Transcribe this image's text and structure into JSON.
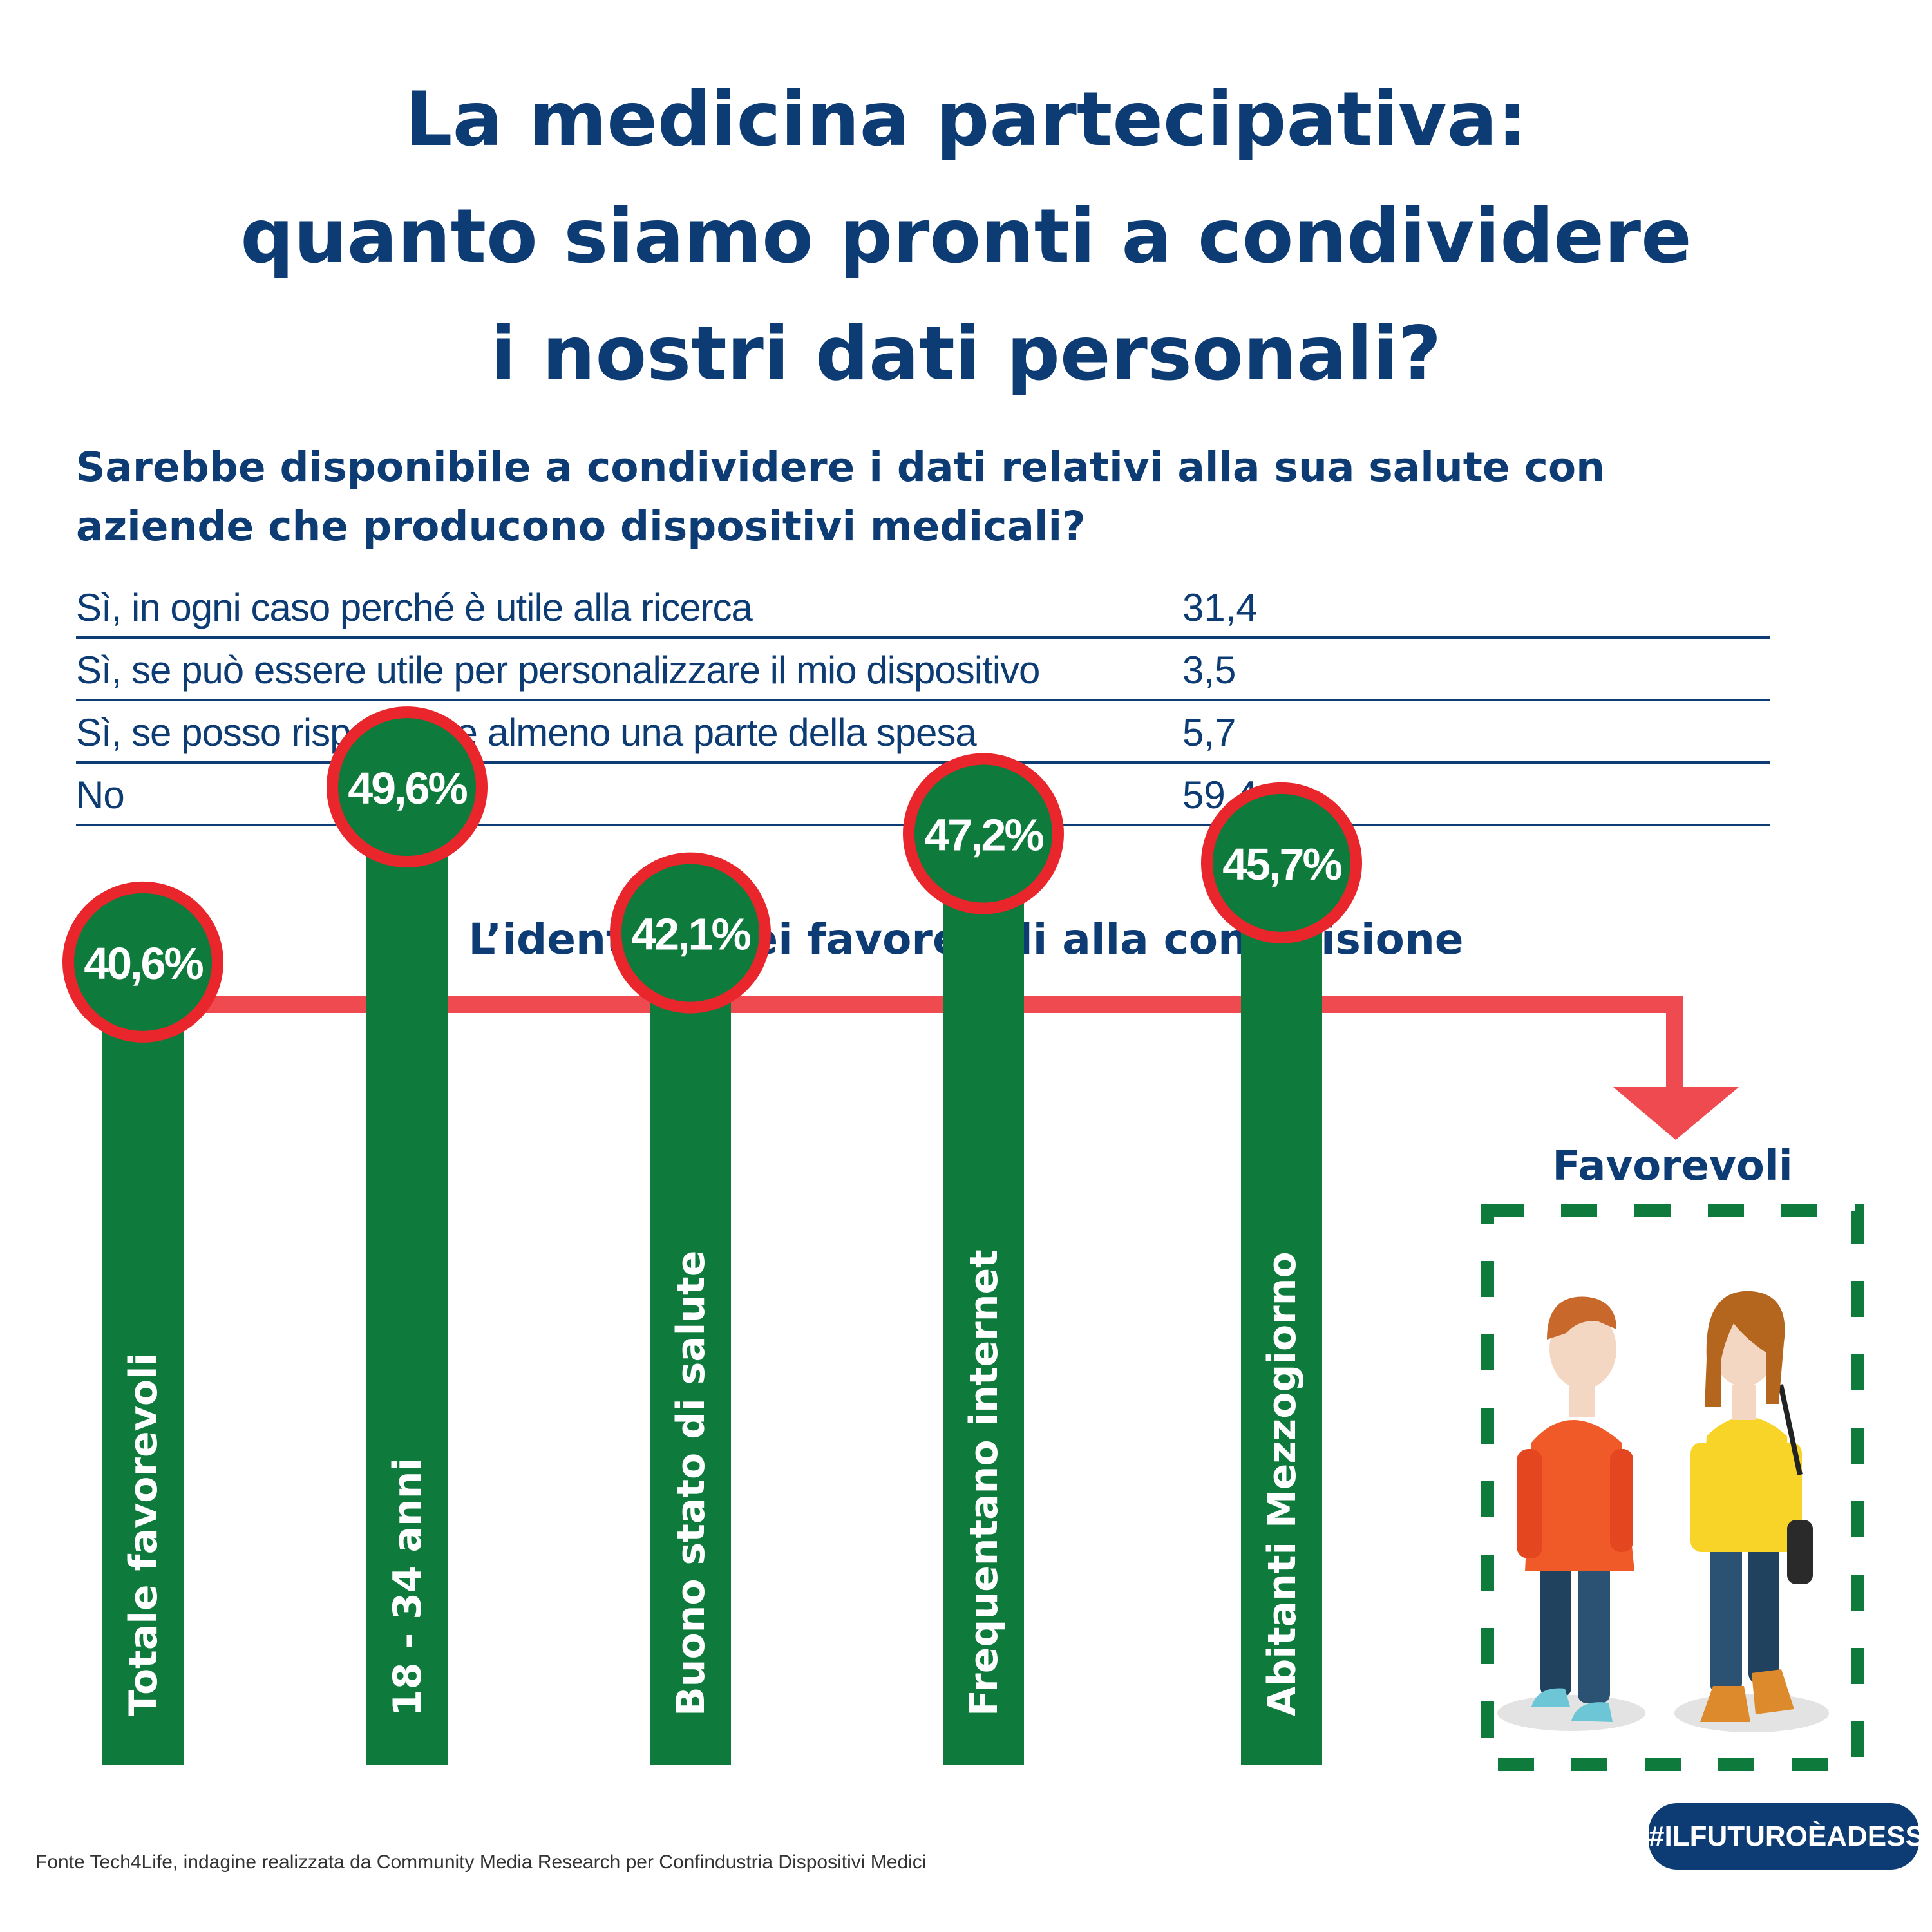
{
  "title_lines": [
    "La medicina partecipativa:",
    "quanto siamo pronti a condividere",
    "i nostri dati personali?"
  ],
  "question": "Sarebbe disponibile a condividere i dati relativi alla sua salute con aziende che producono dispositivi medicali?",
  "table_rows": [
    {
      "label": "Sì, in ogni caso perché è utile alla ricerca",
      "value": "31,4"
    },
    {
      "label": "Sì, se può essere utile per personalizzare il mio dispositivo",
      "value": "3,5"
    },
    {
      "label": "Sì, se posso risparmiare almeno una parte della spesa",
      "value": "5,7"
    },
    {
      "label": "No",
      "value": "59,4"
    }
  ],
  "subtitle": "L’identikit dei favorevoli alla condivisione",
  "favorevoli_label": "Favorevoli",
  "footer": "Fonte Tech4Life, indagine realizzata da Community Media Research per Confindustria Dispositivi Medici",
  "badge": "#ILFUTUROÈADESSO",
  "colors": {
    "navy": "#0d3b73",
    "green": "#0e7a3c",
    "red": "#e8262b",
    "connector": "#ef4a4f"
  },
  "chart_data": {
    "type": "bar",
    "title": "L’identikit dei favorevoli alla condivisione",
    "categories": [
      "Totale favorevoli",
      "18 - 34 anni",
      "Buono stato di salute",
      "Frequentano internet",
      "Abitanti Mezzogiorno"
    ],
    "values": [
      40.6,
      49.6,
      42.1,
      47.2,
      45.7
    ],
    "value_labels": [
      "40,6%",
      "49,6%",
      "42,1%",
      "47,2%",
      "45,7%"
    ],
    "unit": "%"
  }
}
